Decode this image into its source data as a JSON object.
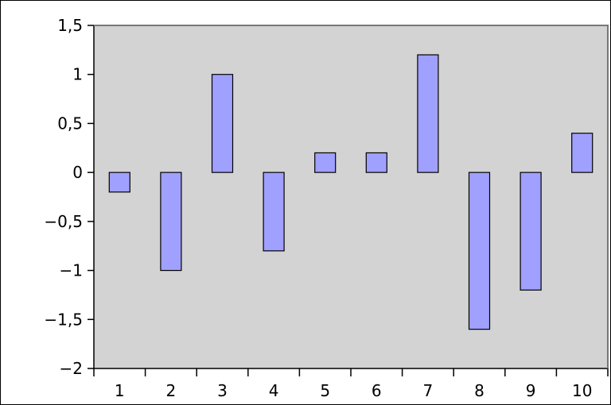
{
  "colors": {
    "plot_background": "#d3d3d3",
    "bar_fill": "#a0a0ff",
    "bar_stroke": "#000000",
    "plot_border": "#777777",
    "axis": "#000000"
  },
  "chart_data": {
    "type": "bar",
    "categories": [
      "1",
      "2",
      "3",
      "4",
      "5",
      "6",
      "7",
      "8",
      "9",
      "10"
    ],
    "values": [
      -0.2,
      -1,
      1,
      -0.8,
      0.2,
      0.2,
      1.2,
      -1.6,
      -1.2,
      0.4
    ],
    "title": "",
    "xlabel": "",
    "ylabel": "",
    "ylim": [
      -2,
      1.5
    ],
    "yticks": [
      -2,
      -1.5,
      -1,
      -0.5,
      0,
      0.5,
      1,
      1.5
    ],
    "ytick_labels": [
      "−2",
      "−1,5",
      "−1",
      "−0,5",
      "0",
      "0,5",
      "1",
      "1,5"
    ],
    "grid": false,
    "legend": "none"
  }
}
